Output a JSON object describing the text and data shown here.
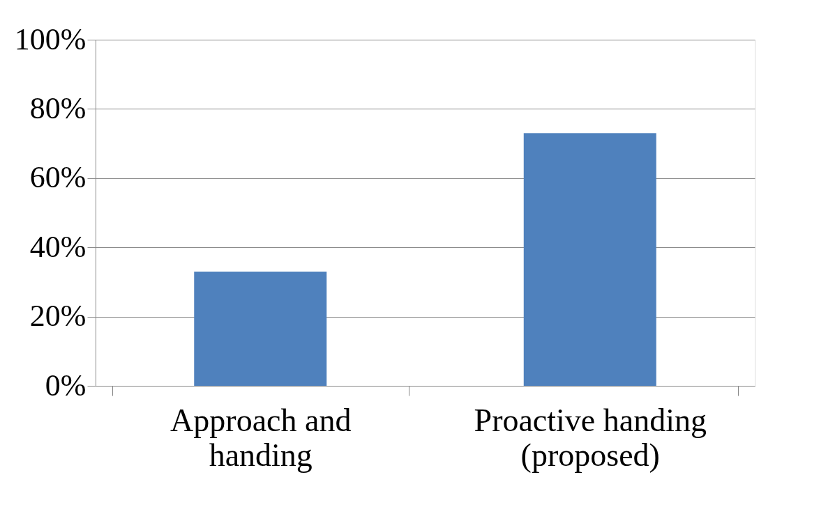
{
  "chart_data": {
    "type": "bar",
    "categories": [
      "Approach and handing",
      "Proactive handing (proposed)"
    ],
    "values": [
      33,
      73
    ],
    "color": "#4f81bd",
    "ylim": [
      0,
      100
    ],
    "yticks": [
      {
        "value": 0,
        "label": "0%"
      },
      {
        "value": 20,
        "label": "20%"
      },
      {
        "value": 40,
        "label": "40%"
      },
      {
        "value": 60,
        "label": "60%"
      },
      {
        "value": 80,
        "label": "80%"
      },
      {
        "value": 100,
        "label": "100%"
      }
    ],
    "grid": "y"
  }
}
